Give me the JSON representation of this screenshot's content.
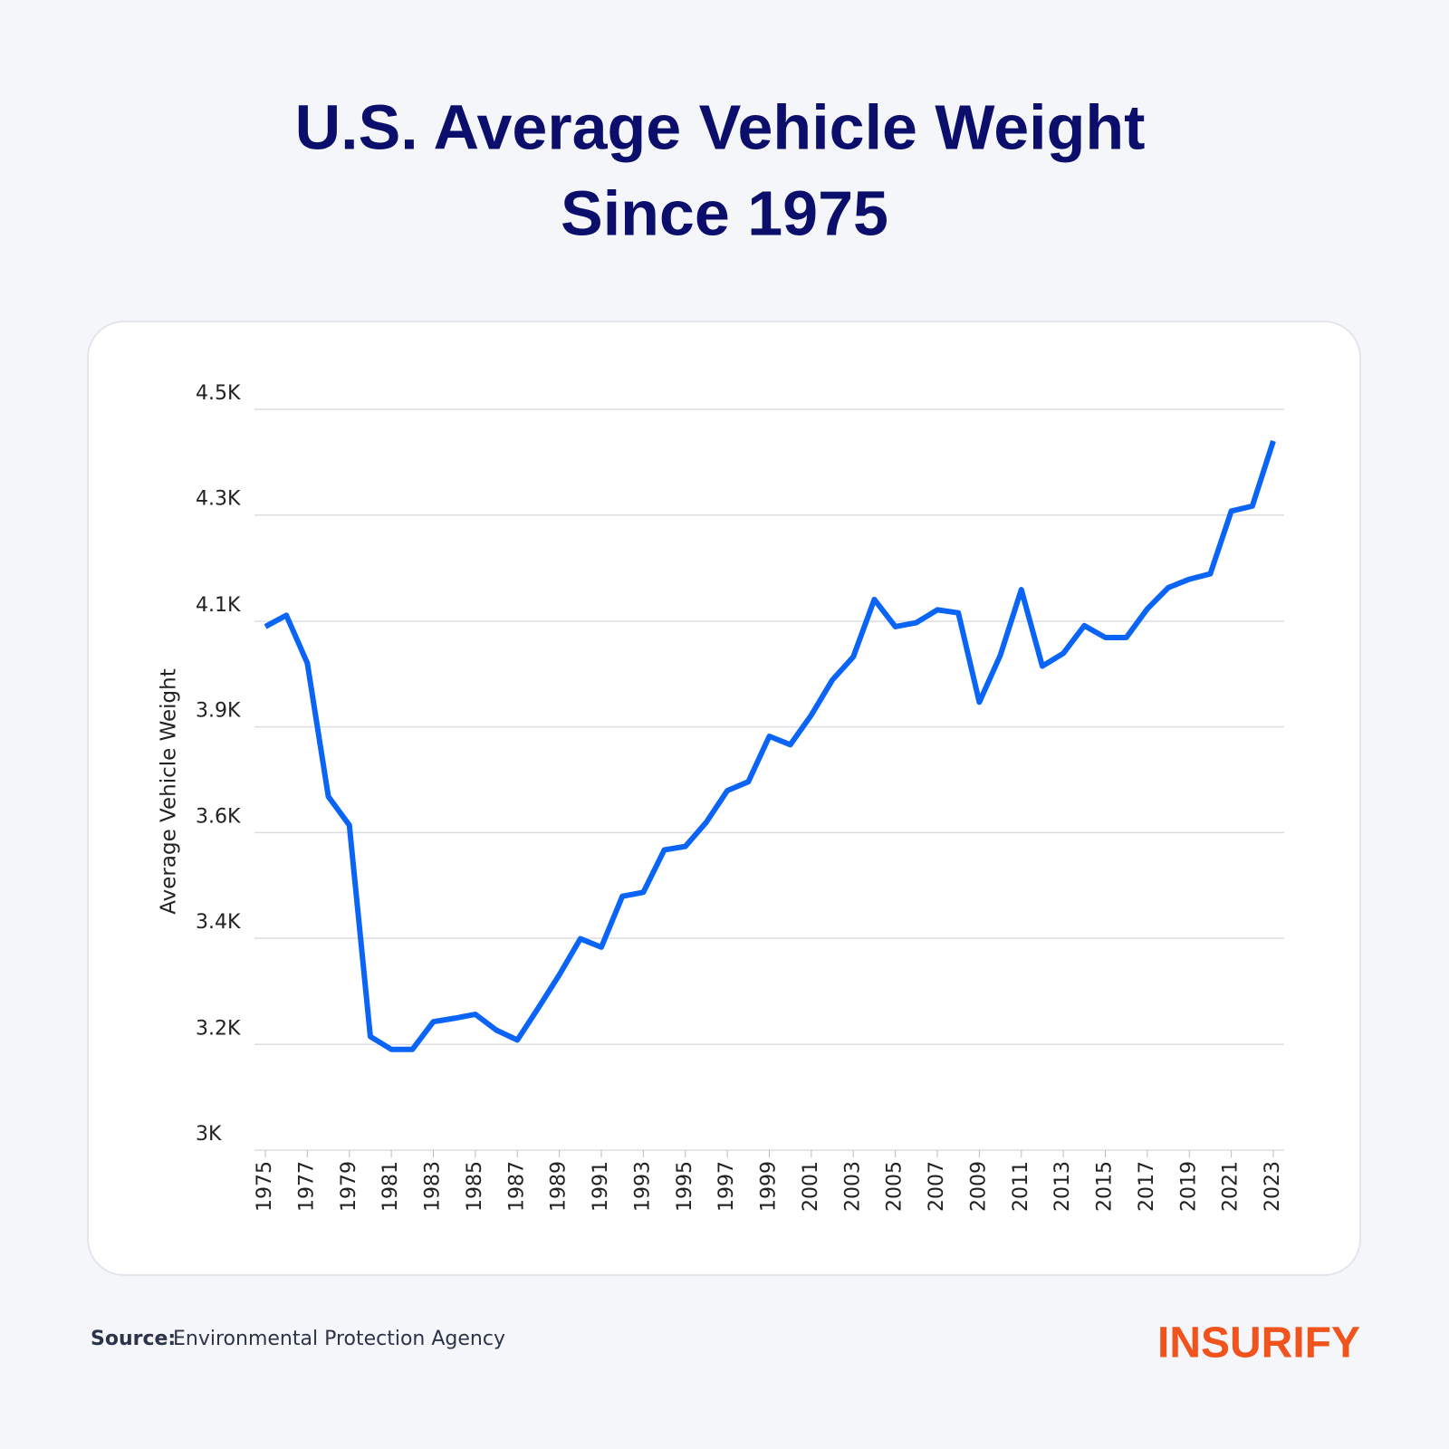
{
  "chart_data": {
    "type": "line",
    "title_lines": [
      "U.S. Average Vehicle Weight",
      "Since 1975"
    ],
    "y_label": "Average Vehicle Weight",
    "x": [
      1975,
      1976,
      1977,
      1978,
      1979,
      1980,
      1981,
      1982,
      1983,
      1984,
      1985,
      1986,
      1987,
      1988,
      1989,
      1990,
      1991,
      1992,
      1993,
      1994,
      1995,
      1996,
      1997,
      1998,
      1999,
      2000,
      2001,
      2002,
      2003,
      2004,
      2005,
      2006,
      2007,
      2008,
      2009,
      2010,
      2011,
      2012,
      2013,
      2014,
      2015,
      2016,
      2017,
      2018,
      2019,
      2020,
      2021,
      2022,
      2023
    ],
    "series": [
      {
        "color": "#0a64f5",
        "values": [
          4060,
          4083,
          3986,
          3716,
          3658,
          3230,
          3204,
          3204,
          3260,
          3267,
          3275,
          3243,
          3223,
          3288,
          3355,
          3428,
          3411,
          3514,
          3522,
          3608,
          3615,
          3664,
          3728,
          3746,
          3838,
          3821,
          3881,
          3952,
          3999,
          4115,
          4060,
          4068,
          4094,
          4088,
          3907,
          4002,
          4135,
          3980,
          4006,
          4062,
          4038,
          4038,
          4096,
          4139,
          4156,
          4167,
          4294,
          4304,
          4436
        ]
      }
    ],
    "xlim": [
      1975,
      2023
    ],
    "xticks": [
      1975,
      1977,
      1979,
      1981,
      1983,
      1985,
      1987,
      1989,
      1991,
      1993,
      1995,
      1997,
      1999,
      2001,
      2003,
      2005,
      2007,
      2009,
      2011,
      2013,
      2015,
      2017,
      2019,
      2021,
      2023
    ],
    "ylim": [
      3000,
      4500
    ],
    "yticks": [
      {
        "value": 3000,
        "label": "3K"
      },
      {
        "value": 3214,
        "label": "3.2K"
      },
      {
        "value": 3429,
        "label": "3.4K"
      },
      {
        "value": 3643,
        "label": "3.6K"
      },
      {
        "value": 3857,
        "label": "3.9K"
      },
      {
        "value": 4071,
        "label": "4.1K"
      },
      {
        "value": 4286,
        "label": "4.3K"
      },
      {
        "value": 4500,
        "label": "4.5K"
      }
    ],
    "grid": true,
    "source_label": "Source:",
    "source": "Environmental Protection Agency",
    "logo": "INSURIFY"
  }
}
